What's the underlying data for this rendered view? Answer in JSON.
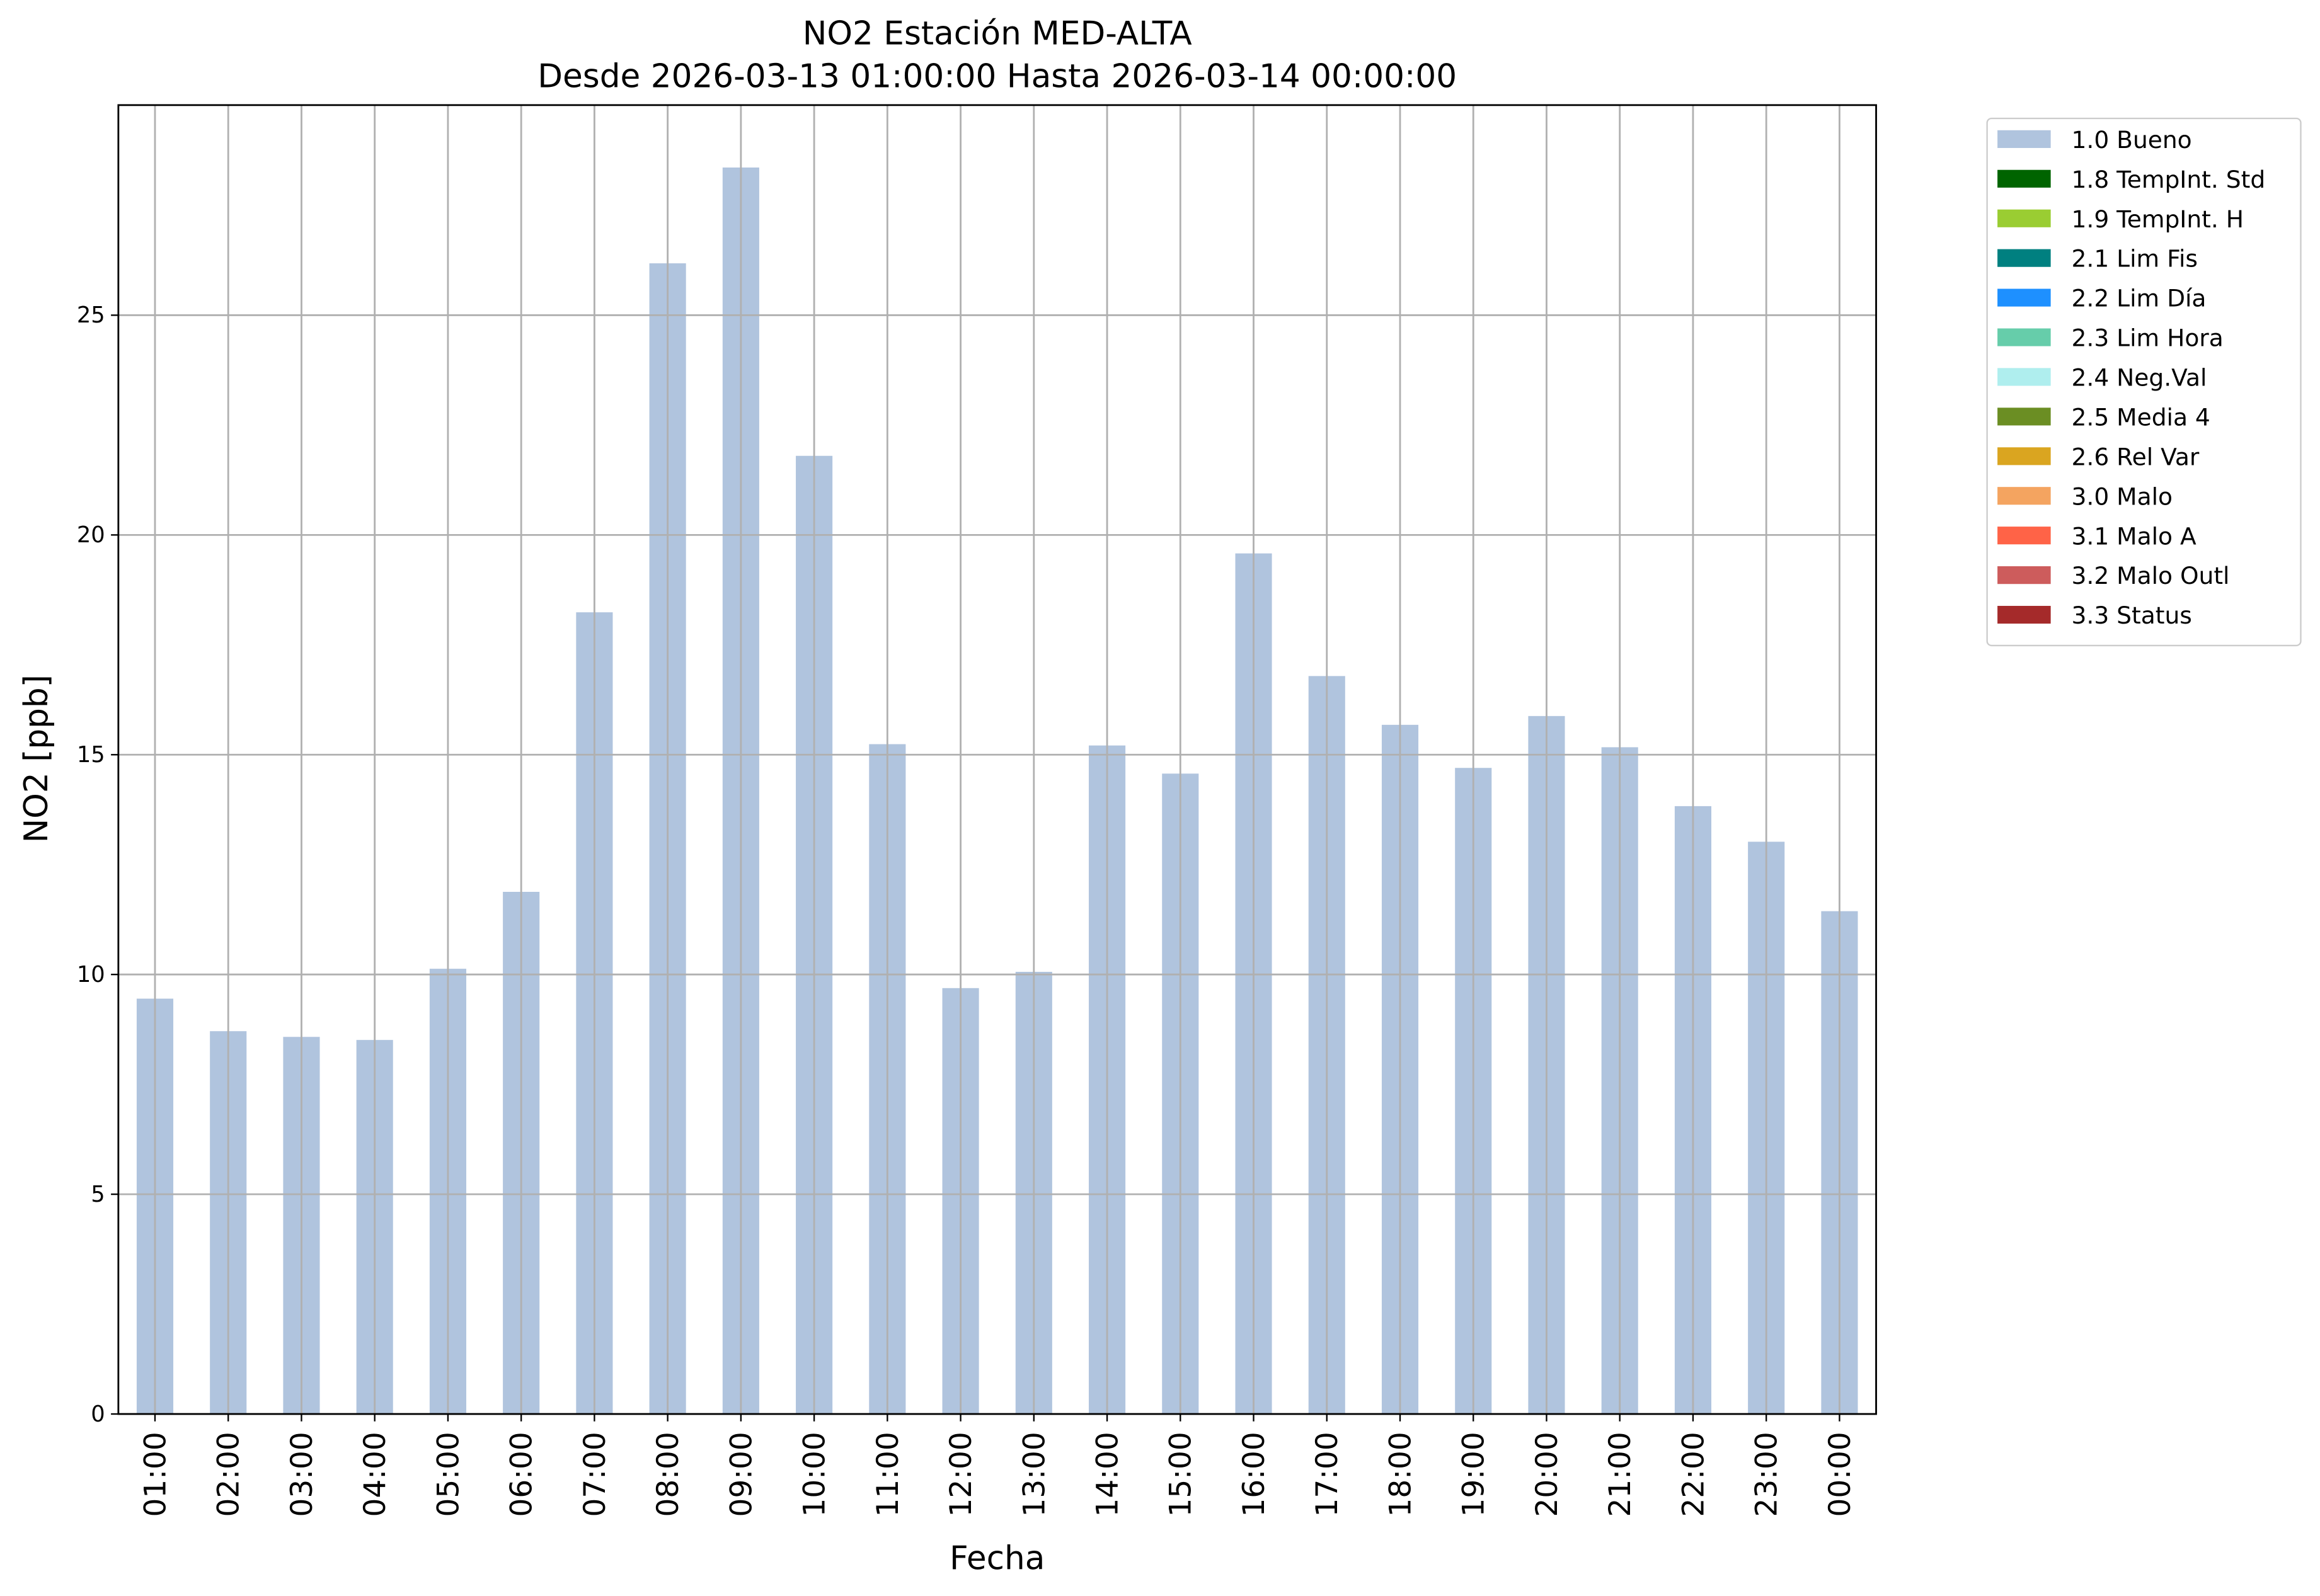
{
  "chart_data": {
    "type": "bar",
    "title": "NO2 Estación MED-ALTA",
    "subtitle": "Desde 2026-03-13 01:00:00 Hasta 2026-03-14 00:00:00",
    "x_label": "Fecha",
    "y_label": "NO2 [ppb]",
    "categories": [
      "01:00",
      "02:00",
      "03:00",
      "04:00",
      "05:00",
      "06:00",
      "07:00",
      "08:00",
      "09:00",
      "10:00",
      "11:00",
      "12:00",
      "13:00",
      "14:00",
      "15:00",
      "16:00",
      "17:00",
      "18:00",
      "19:00",
      "20:00",
      "21:00",
      "22:00",
      "23:00",
      "00:00"
    ],
    "series": [
      {
        "name": "1.0 Bueno",
        "color": "#b0c4de",
        "values": [
          9.45,
          8.71,
          8.58,
          8.51,
          10.13,
          11.88,
          18.24,
          26.18,
          28.36,
          21.8,
          15.24,
          9.69,
          10.06,
          15.21,
          14.57,
          19.58,
          16.79,
          15.68,
          14.7,
          15.88,
          15.17,
          13.83,
          13.02,
          11.44
        ]
      },
      {
        "name": "1.8 TempInt. Std",
        "color": "#006400"
      },
      {
        "name": "1.9 TempInt. H",
        "color": "#9acd32"
      },
      {
        "name": "2.1 Lim Fis",
        "color": "#008080"
      },
      {
        "name": "2.2 Lim Día",
        "color": "#1e90ff"
      },
      {
        "name": "2.3 Lim Hora",
        "color": "#66cdaa"
      },
      {
        "name": "2.4 Neg.Val",
        "color": "#afeeee"
      },
      {
        "name": "2.5 Media 4",
        "color": "#6b8e23"
      },
      {
        "name": "2.6 Rel Var",
        "color": "#daa520"
      },
      {
        "name": "3.0 Malo",
        "color": "#f4a460"
      },
      {
        "name": "3.1 Malo A",
        "color": "#ff6347"
      },
      {
        "name": "3.2 Malo Outl",
        "color": "#cd5c5c"
      },
      {
        "name": "3.3 Status",
        "color": "#a52a2a"
      }
    ],
    "ylim": [
      0,
      29.78
    ],
    "yticks": [
      0,
      5,
      10,
      15,
      20,
      25
    ],
    "grid": true,
    "legend": "outside-right"
  }
}
